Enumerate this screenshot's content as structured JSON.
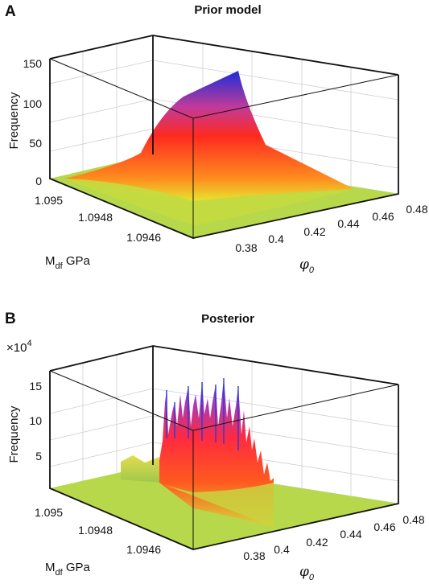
{
  "colors": {
    "floor": "#b6d84a",
    "low": "#e8e830",
    "mid": "#ff2a1a",
    "high": "#1a33d6"
  },
  "chart_data": [
    {
      "panel": "A",
      "title": "Prior model",
      "type": "surface3d",
      "xlabel": "M",
      "xlabel_sub": "df",
      "xlabel_unit": "GPa",
      "ylabel_symbol": "φ",
      "ylabel_sub": "0",
      "zlabel": "Frequency",
      "z_multiplier": "",
      "x_ticks": [
        "1.095",
        "1.0948",
        "1.0946"
      ],
      "y_ticks": [
        "0.38",
        "0.4",
        "0.42",
        "0.44",
        "0.46",
        "0.48"
      ],
      "z_ticks": [
        "0",
        "50",
        "100",
        "150"
      ],
      "zlim": [
        0,
        150
      ],
      "grid": true,
      "peak": {
        "phi0": 0.42,
        "M_df": 1.0948,
        "frequency": 125
      }
    },
    {
      "panel": "B",
      "title": "Posterior",
      "type": "surface3d",
      "xlabel": "M",
      "xlabel_sub": "df",
      "xlabel_unit": "GPa",
      "ylabel_symbol": "φ",
      "ylabel_sub": "0",
      "zlabel": "Frequency",
      "z_multiplier": "×10",
      "z_multiplier_exp": "4",
      "x_ticks": [
        "1.095",
        "1.0948",
        "1.0946"
      ],
      "y_ticks": [
        "0.38",
        "0.4",
        "0.42",
        "0.44",
        "0.46",
        "0.48"
      ],
      "z_ticks": [
        "5",
        "10",
        "15"
      ],
      "zlim": [
        0,
        17
      ],
      "grid": true,
      "peak": {
        "phi0": 0.41,
        "M_df": 1.0947,
        "frequency": 16
      }
    }
  ]
}
